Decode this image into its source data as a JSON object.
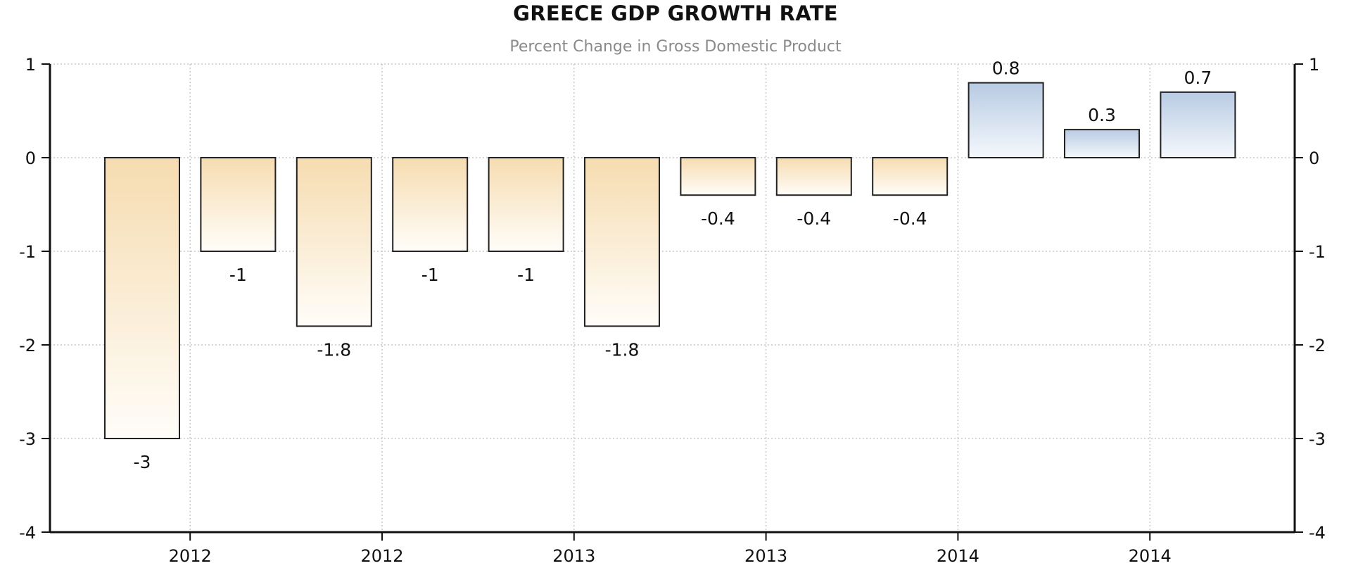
{
  "chart_data": {
    "type": "bar",
    "title": "GREECE GDP GROWTH RATE",
    "subtitle": "Percent Change in Gross Domestic Product",
    "values": [
      -3,
      -1,
      -1.8,
      -1,
      -1,
      -1.8,
      -0.4,
      -0.4,
      -0.4,
      0.8,
      0.3,
      0.7
    ],
    "data_labels": [
      "-3",
      "-1",
      "-1.8",
      "-1",
      "-1",
      "-1.8",
      "-0.4",
      "-0.4",
      "-0.4",
      "0.8",
      "0.3",
      "0.7"
    ],
    "x_tick_labels": [
      "2012",
      "2012",
      "2013",
      "2013",
      "2014",
      "2014"
    ],
    "y_tick_labels": [
      "1",
      "0",
      "-1",
      "-2",
      "-3",
      "-4"
    ],
    "ylim": [
      -4,
      1
    ],
    "yticks": [
      1,
      0,
      -1,
      -2,
      -3,
      -4
    ],
    "grid": true,
    "dual_y_axis": true,
    "colors": {
      "negative_top": "#f6dcb0",
      "negative_bottom": "#fffdf9",
      "positive_top": "#b8cbe3",
      "positive_bottom": "#f4f8fc",
      "bar_border": "#222222",
      "grid": "#c8c8c8",
      "axis": "#111111"
    }
  }
}
